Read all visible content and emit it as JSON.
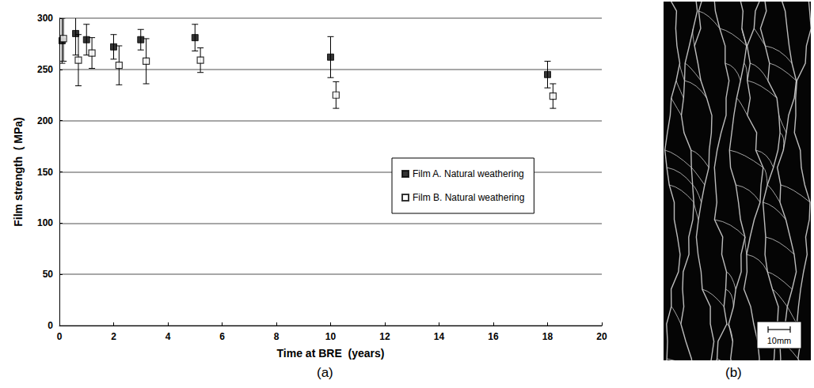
{
  "chart_data": {
    "type": "scatter",
    "x_label": "Time at BRE  (years)",
    "y_label": "Film strength  ( MPa)",
    "xlim": [
      0,
      20
    ],
    "xticks": [
      0,
      2,
      4,
      6,
      8,
      10,
      12,
      14,
      16,
      18,
      20
    ],
    "ylim": [
      0,
      300
    ],
    "yticks": [
      0,
      50,
      100,
      150,
      200,
      250,
      300
    ],
    "grid": true,
    "legend": "right",
    "series": [
      {
        "name": "Film A. Natural weathering",
        "color": "#000000",
        "marker": "filled_square",
        "x": [
          0.1,
          0.6,
          1,
          2,
          3,
          5,
          10,
          18
        ],
        "values": [
          278,
          285,
          279,
          272,
          279,
          281,
          262,
          245
        ],
        "errors": [
          22,
          21,
          15,
          12,
          10,
          13,
          20,
          13
        ]
      },
      {
        "name": "Film B. Natural weathering",
        "color": "#000000",
        "marker": "open_square",
        "x": [
          0.15,
          0.7,
          1.2,
          2.2,
          3.2,
          5.2,
          10.2,
          18.2
        ],
        "values": [
          280,
          259,
          266,
          254,
          258,
          259,
          225,
          224
        ],
        "errors": [
          22,
          25,
          15,
          19,
          22,
          12,
          13,
          12
        ]
      }
    ]
  },
  "figure": {
    "panel_labels": [
      "(a)",
      "(b)"
    ],
    "image_scale_bar": "10mm"
  }
}
